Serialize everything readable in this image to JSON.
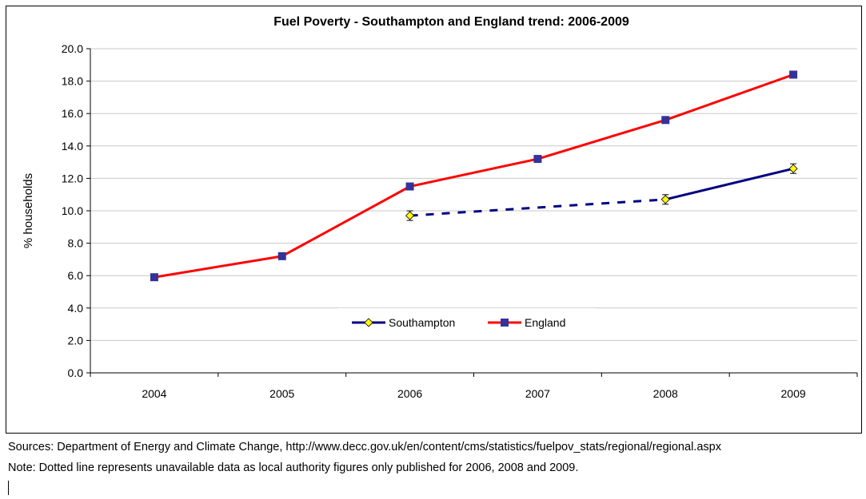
{
  "chart_data": {
    "type": "line",
    "title": "Fuel Poverty - Southampton and England trend: 2006-2009",
    "xlabel": "",
    "ylabel": "% households",
    "categories": [
      "2004",
      "2005",
      "2006",
      "2007",
      "2008",
      "2009"
    ],
    "ylim": [
      0,
      20
    ],
    "yticks": [
      "0.0",
      "2.0",
      "4.0",
      "6.0",
      "8.0",
      "10.0",
      "12.0",
      "14.0",
      "16.0",
      "18.0",
      "20.0"
    ],
    "grid": "horizontal",
    "legend_position": "bottom-center",
    "series": [
      {
        "name": "Southampton",
        "color": "#000080",
        "marker": "diamond",
        "marker_fill": "#FFFF00",
        "values": [
          null,
          null,
          9.7,
          null,
          10.7,
          12.6
        ],
        "dotted_segment": [
          "2006",
          "2008"
        ]
      },
      {
        "name": "England",
        "color": "#FF0000",
        "marker": "square",
        "marker_fill": "#333399",
        "values": [
          5.9,
          7.2,
          11.5,
          13.2,
          15.6,
          18.4
        ]
      }
    ]
  },
  "notes": {
    "sources": "Sources: Department of Energy and Climate Change, http://www.decc.gov.uk/en/content/cms/statistics/fuelpov_stats/regional/regional.aspx",
    "note": "Note: Dotted line represents unavailable data as local authority figures only published for 2006, 2008 and 2009."
  }
}
